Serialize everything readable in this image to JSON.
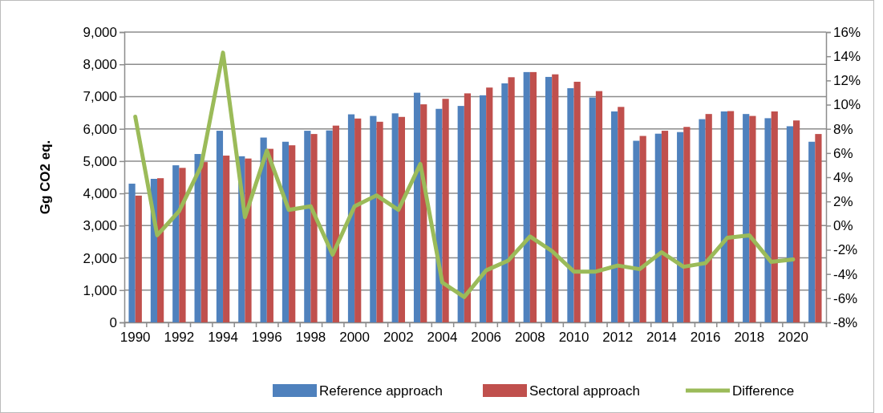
{
  "chart_data": {
    "type": "bar",
    "ylabel": "Gg CO2 eq.",
    "categories": [
      "1990",
      null,
      "1992",
      null,
      "1994",
      null,
      "1996",
      null,
      "1998",
      null,
      "2000",
      null,
      "2002",
      null,
      "2004",
      null,
      "2006",
      null,
      "2008",
      null,
      "2010",
      null,
      "2012",
      null,
      "2014",
      null,
      "2016",
      null,
      "2018",
      null,
      "2020",
      null
    ],
    "series": [
      {
        "name": "Reference approach",
        "color": "#4f81bd",
        "values": [
          4300,
          4450,
          4870,
          5220,
          5940,
          5150,
          5730,
          5600,
          5940,
          5950,
          6450,
          6400,
          6480,
          7120,
          6620,
          6710,
          7040,
          7410,
          7760,
          7610,
          7260,
          6970,
          6540,
          5630,
          5850,
          5900,
          6300,
          6540,
          6460,
          6330,
          6080,
          5600
        ]
      },
      {
        "name": "Sectoral approach",
        "color": "#c0504d",
        "values": [
          3930,
          4470,
          4790,
          4970,
          5170,
          5080,
          5380,
          5490,
          5840,
          6100,
          6320,
          6220,
          6370,
          6760,
          6930,
          7100,
          7280,
          7600,
          7760,
          7690,
          7460,
          7170,
          6680,
          5780,
          5940,
          6060,
          6460,
          6550,
          6400,
          6540,
          6260,
          5840
        ]
      },
      {
        "name": "Difference",
        "type": "line",
        "axis": "y2",
        "color": "#9bbb59",
        "values": [
          9.0,
          -0.8,
          1.2,
          4.9,
          14.3,
          0.7,
          6.2,
          1.3,
          1.6,
          -2.4,
          1.6,
          2.5,
          1.3,
          5.1,
          -4.7,
          -5.9,
          -3.7,
          -2.9,
          -0.9,
          -2.1,
          -3.8,
          -3.8,
          -3.3,
          -3.6,
          -2.2,
          -3.4,
          -3.1,
          -1.0,
          -0.8,
          -3.0,
          -2.8,
          null
        ]
      }
    ],
    "ylim": [
      0,
      9000
    ],
    "yticks": [
      {
        "value": 0,
        "label": "0"
      },
      {
        "value": 1000,
        "label": "1,000"
      },
      {
        "value": 2000,
        "label": "2,000"
      },
      {
        "value": 3000,
        "label": "3,000"
      },
      {
        "value": 4000,
        "label": "4,000"
      },
      {
        "value": 5000,
        "label": "5,000"
      },
      {
        "value": 6000,
        "label": "6,000"
      },
      {
        "value": 7000,
        "label": "7,000"
      },
      {
        "value": 8000,
        "label": "8,000"
      },
      {
        "value": 9000,
        "label": "9,000"
      }
    ],
    "y2lim": [
      -8,
      16
    ],
    "y2ticks": [
      {
        "value": -8,
        "label": "-8%"
      },
      {
        "value": -6,
        "label": "-6%"
      },
      {
        "value": -4,
        "label": "-4%"
      },
      {
        "value": -2,
        "label": "-2%"
      },
      {
        "value": 0,
        "label": "0%"
      },
      {
        "value": 2,
        "label": "2%"
      },
      {
        "value": 4,
        "label": "4%"
      },
      {
        "value": 6,
        "label": "6%"
      },
      {
        "value": 8,
        "label": "8%"
      },
      {
        "value": 10,
        "label": "10%"
      },
      {
        "value": 12,
        "label": "12%"
      },
      {
        "value": 14,
        "label": "14%"
      },
      {
        "value": 16,
        "label": "16%"
      }
    ],
    "grid": "y",
    "legend": "bottom"
  }
}
